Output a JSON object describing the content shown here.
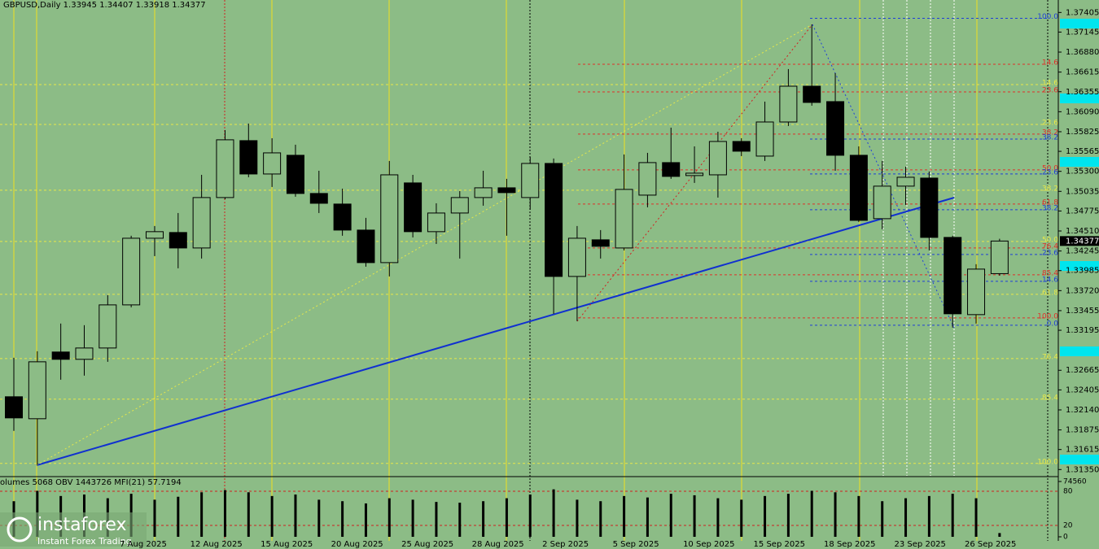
{
  "chart_data": [
    {
      "type": "candlestick",
      "title": "GBPUSD,Daily  1.33945 1.34407 1.33918 1.34377",
      "categories": [
        null,
        null,
        null,
        null,
        null,
        "7 Aug 2025",
        null,
        null,
        "12 Aug 2025",
        null,
        null,
        "15 Aug 2025",
        null,
        null,
        "20 Aug 2025",
        null,
        null,
        "25 Aug 2025",
        null,
        null,
        "28 Aug 2025",
        null,
        null,
        "2 Sep 2025",
        null,
        null,
        "5 Sep 2025",
        null,
        null,
        "10 Sep 2025",
        null,
        null,
        "15 Sep 2025",
        null,
        null,
        "18 Sep 2025",
        null,
        null,
        "23 Sep 2025",
        null,
        null,
        "26 Sep 2025",
        null
      ],
      "open": [
        1.32314,
        1.32023,
        1.32907,
        1.3281,
        1.3296,
        1.33531,
        1.34414,
        1.3449,
        1.34285,
        1.34953,
        1.35707,
        1.35265,
        1.35513,
        1.35007,
        1.34867,
        1.34522,
        1.34091,
        1.35147,
        1.34501,
        1.34748,
        1.34953,
        1.35082,
        1.34953,
        1.35405,
        1.33908,
        1.34393,
        1.34285,
        1.34985,
        1.35416,
        1.35244,
        1.35254,
        1.35696,
        1.35502,
        1.35954,
        1.36428,
        1.36224,
        1.35513,
        1.34673,
        1.35104,
        1.35211,
        1.34425,
        1.33402,
        1.33945
      ],
      "high": [
        1.32831,
        1.32917,
        1.33284,
        1.33262,
        1.3366,
        1.34447,
        1.34576,
        1.34748,
        1.35254,
        1.35847,
        1.35933,
        1.35739,
        1.35653,
        1.35308,
        1.35071,
        1.34684,
        1.35438,
        1.35254,
        1.34877,
        1.35039,
        1.35308,
        1.35201,
        1.35491,
        1.3547,
        1.34576,
        1.34522,
        1.35524,
        1.35545,
        1.35879,
        1.35631,
        1.35825,
        1.35739,
        1.36224,
        1.36655,
        1.37247,
        1.36601,
        1.35631,
        1.35438,
        1.35362,
        1.35298,
        1.34447,
        1.3407,
        1.34407
      ],
      "low": [
        1.31862,
        1.3141,
        1.3254,
        1.32594,
        1.32777,
        1.33499,
        1.34177,
        1.34016,
        1.34145,
        1.34931,
        1.35222,
        1.35093,
        1.34964,
        1.34748,
        1.34447,
        1.34037,
        1.33908,
        1.34425,
        1.34339,
        1.34145,
        1.34845,
        1.34447,
        1.34791,
        1.33413,
        1.33316,
        1.34145,
        1.34253,
        1.34824,
        1.35201,
        1.35147,
        1.34953,
        1.35502,
        1.35438,
        1.35901,
        1.3617,
        1.35308,
        1.3463,
        1.34533,
        1.34856,
        1.34253,
        1.3323,
        1.33284,
        1.33918
      ],
      "close": [
        1.32034,
        1.32777,
        1.3281,
        1.3296,
        1.33531,
        1.34414,
        1.34501,
        1.34285,
        1.34953,
        1.35718,
        1.35265,
        1.35545,
        1.35007,
        1.34877,
        1.34522,
        1.34091,
        1.35254,
        1.34501,
        1.34748,
        1.34953,
        1.35082,
        1.35018,
        1.35405,
        1.33908,
        1.34414,
        1.34307,
        1.35061,
        1.35416,
        1.35233,
        1.35276,
        1.35696,
        1.35567,
        1.35954,
        1.36428,
        1.36213,
        1.35513,
        1.34651,
        1.35104,
        1.35222,
        1.34425,
        1.33413,
        1.34005,
        1.34377
      ],
      "up_color": "#8cbc86",
      "down_color": "#000000",
      "outline_color": "#000000",
      "ylim": [
        1.31267,
        1.3757
      ],
      "yticks": [
        1.37405,
        1.37145,
        {
          "value": 1.3688,
          "label": "1.36880"
        },
        1.36615,
        1.36355,
        {
          "value": 1.3609,
          "label": "1.36090"
        },
        1.35825,
        1.35565,
        {
          "value": 1.353,
          "label": "1.35300"
        },
        1.35035,
        1.34775,
        {
          "value": 1.3451,
          "label": "1.34510"
        },
        1.34245,
        1.33985,
        {
          "value": 1.3372,
          "label": "1.33720"
        },
        1.33455,
        1.33195,
        1.32665,
        1.32405,
        {
          "value": 1.3214,
          "label": "1.32140"
        },
        1.31875,
        1.31615,
        {
          "value": 1.3135,
          "label": "1.31350"
        }
      ],
      "current_price": 1.34377,
      "levels": [
        {
          "label": "100.0",
          "value": 1.37328,
          "color": "#1f3fd8"
        },
        {
          "label": "14.6",
          "value": 1.36719,
          "color": "#e0302a"
        },
        {
          "label": "14.6",
          "value": 1.3645,
          "color": "#e8e84a"
        },
        {
          "label": "23.6",
          "value": 1.36353,
          "color": "#e0302a"
        },
        {
          "label": "23.6",
          "value": 1.35922,
          "color": "#e8e84a"
        },
        {
          "label": "38.2",
          "value": 1.35793,
          "color": "#e0302a"
        },
        {
          "label": "38.2",
          "value": 1.35728,
          "color": "#1f3fd8"
        },
        {
          "label": "50.0",
          "value": 1.35319,
          "color": "#e0302a"
        },
        {
          "label": "23.6",
          "value": 1.35265,
          "color": "#1f3fd8"
        },
        {
          "label": "38.2",
          "value": 1.3505,
          "color": "#e8e84a"
        },
        {
          "label": "61.8",
          "value": 1.34867,
          "color": "#e0302a"
        },
        {
          "label": "38.2",
          "value": 1.34792,
          "color": "#1f3fd8"
        },
        {
          "label": "50.0",
          "value": 1.34371,
          "color": "#e8e84a"
        },
        {
          "label": "76.4",
          "value": 1.34285,
          "color": "#e0302a"
        },
        {
          "label": "23.6",
          "value": 1.34199,
          "color": "#1f3fd8"
        },
        {
          "label": "85.4",
          "value": 1.3393,
          "color": "#e0302a"
        },
        {
          "label": "14.6",
          "value": 1.33844,
          "color": "#1f3fd8"
        },
        {
          "label": "61.8",
          "value": 1.33671,
          "color": "#e8e84a"
        },
        {
          "label": "100.0",
          "value": 1.33359,
          "color": "#e0302a"
        },
        {
          "label": "0.0",
          "value": 1.33262,
          "color": "#1f3fd8"
        },
        {
          "label": "76.4",
          "value": 1.3282,
          "color": "#e8e84a"
        },
        {
          "label": "85.4",
          "value": 1.32282,
          "color": "#e8e84a"
        },
        {
          "label": "100.0",
          "value": 1.31431,
          "color": "#e8e84a"
        }
      ]
    },
    {
      "type": "bar",
      "title": "olumes 5068  OBV 1443726  MFI(21) 57.7194",
      "values": [
        48000,
        62000,
        55000,
        57000,
        52000,
        58000,
        50000,
        54000,
        60000,
        63000,
        60000,
        55000,
        57000,
        50000,
        48000,
        45000,
        52000,
        50000,
        47000,
        46000,
        48000,
        52000,
        57000,
        64000,
        50000,
        48000,
        55000,
        53000,
        58000,
        56000,
        52000,
        50000,
        55000,
        58000,
        62000,
        60000,
        55000,
        48000,
        52000,
        55000,
        58000,
        52000,
        5068
      ],
      "color": "#000000",
      "ylim": [
        0,
        74560
      ],
      "yticks": [
        0,
        74560
      ],
      "y2lim": [
        0,
        100
      ],
      "y2ticks": [
        20,
        80
      ]
    }
  ],
  "watermark": {
    "brand": "instaforex",
    "tagline": "Instant Forex Trading"
  }
}
